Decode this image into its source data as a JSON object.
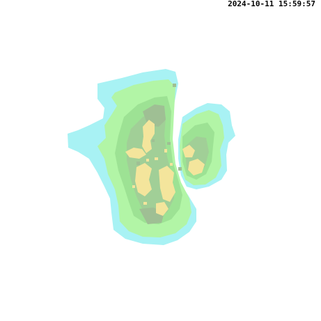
{
  "timestamp": "2024-10-11 15:59:57",
  "colors": {
    "background": "#ffffff",
    "cyan": "#a8f2f4",
    "light_green": "#b2f5a6",
    "mid_green": "#9de294",
    "gray_green": "#a1cf97",
    "gray": "#9fbf94",
    "yellow": "#f4e59c",
    "text": "#000000"
  }
}
